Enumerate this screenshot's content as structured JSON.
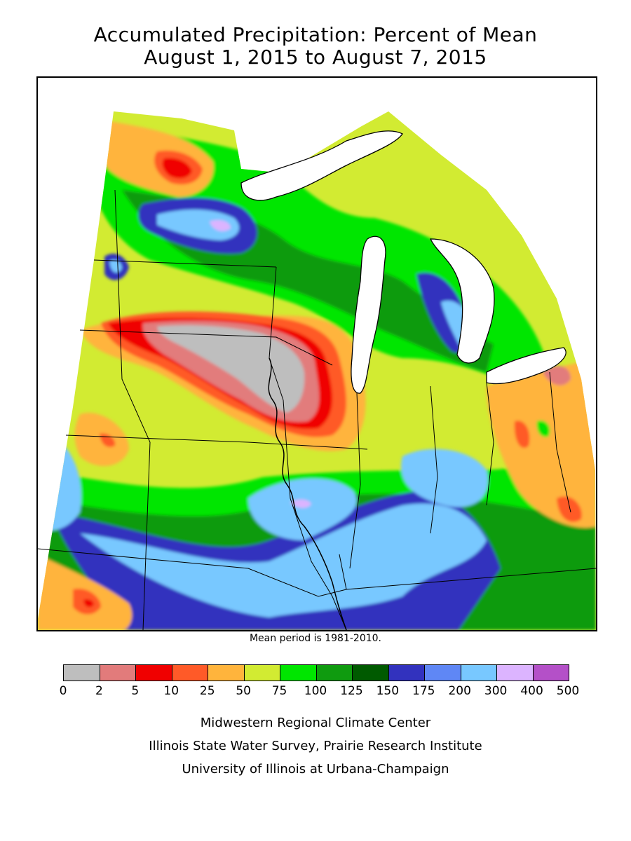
{
  "title": {
    "line1": "Accumulated Precipitation: Percent of Mean",
    "line2": "August 1, 2015 to August 7, 2015"
  },
  "map": {
    "region": "Midwest United States",
    "mean_note": "Mean period is 1981-2010."
  },
  "legend": {
    "ticks": [
      "0",
      "2",
      "5",
      "10",
      "25",
      "50",
      "75",
      "100",
      "125",
      "150",
      "175",
      "200",
      "300",
      "400",
      "500"
    ],
    "colors": [
      "#bebebe",
      "#e27b7b",
      "#f00000",
      "#ff5a28",
      "#ffb43c",
      "#d2eb32",
      "#00e600",
      "#0f9b0f",
      "#005a00",
      "#3232be",
      "#5f87f5",
      "#78c8ff",
      "#dcb4ff",
      "#b450c8"
    ]
  },
  "credits": [
    "Midwestern Regional Climate Center",
    "Illinois State Water Survey, Prairie Research Institute",
    "University of Illinois at Urbana-Champaign"
  ]
}
